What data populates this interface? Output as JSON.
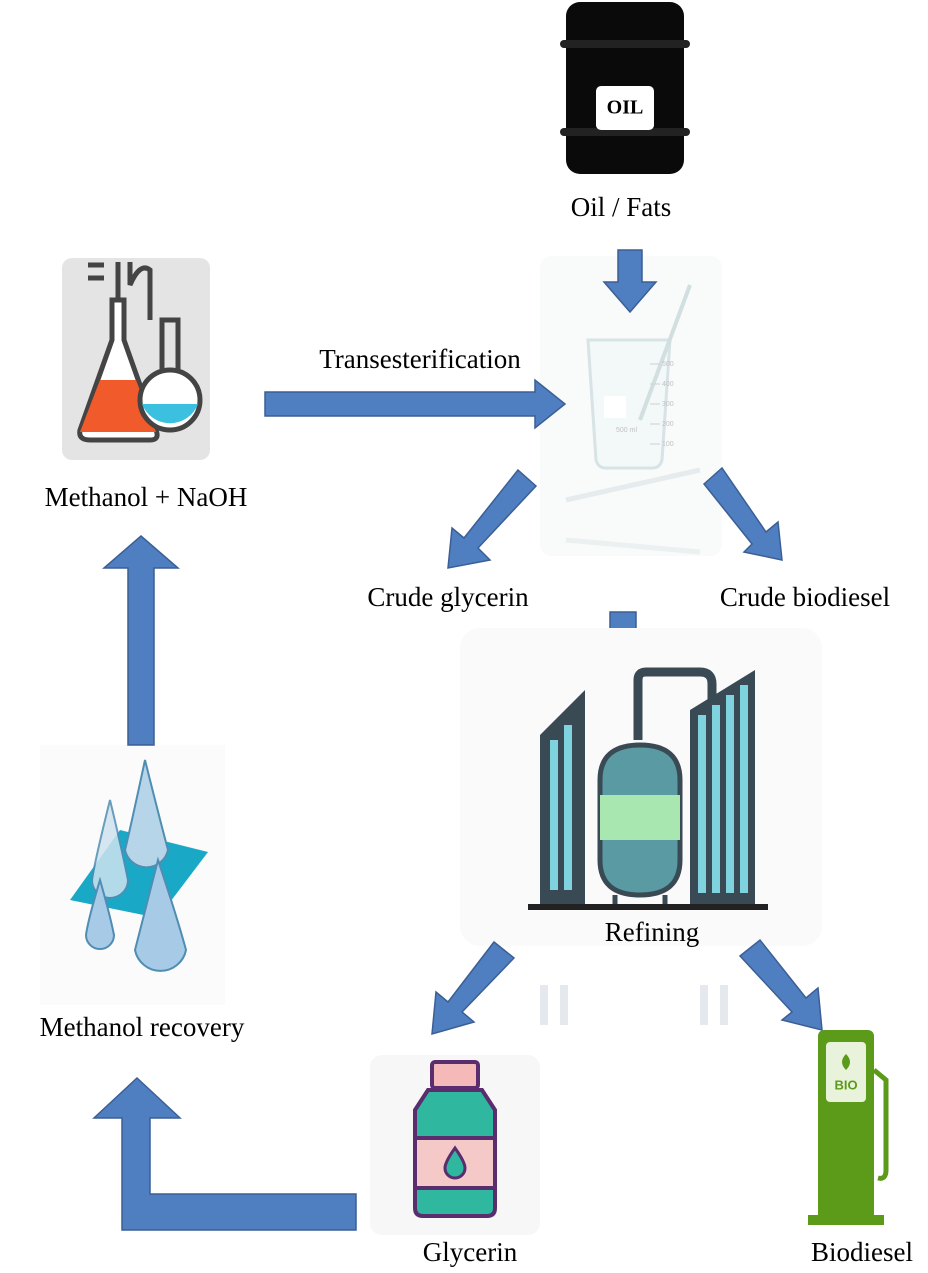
{
  "nodes": [
    {
      "label": "Oil / Fats"
    },
    {
      "label": "Methanol + NaOH"
    },
    {
      "label": "Crude glycerin"
    },
    {
      "label": "Crude biodiesel"
    },
    {
      "label": "Refining"
    },
    {
      "label": "Glycerin"
    },
    {
      "label": "Biodiesel"
    },
    {
      "label": "Methanol recovery"
    }
  ],
  "edges": [
    {
      "label": "Transesterification"
    }
  ],
  "icons": {
    "barrel": "OIL",
    "pump": "BIO",
    "beaker": [
      "500",
      "400",
      "300",
      "200",
      "100",
      "500 ml"
    ]
  }
}
